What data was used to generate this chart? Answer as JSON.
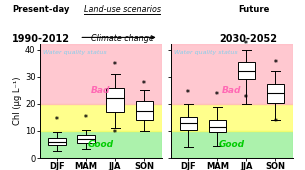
{
  "seasons": [
    "DJF",
    "MAM",
    "JJA",
    "SON"
  ],
  "panel1": {
    "DJF": {
      "whislo": 2.5,
      "q1": 5.0,
      "med": 6.0,
      "q3": 7.5,
      "whishi": 9.5,
      "fliers": [
        14.0
      ]
    },
    "MAM": {
      "whislo": 3.5,
      "q1": 5.5,
      "med": 7.0,
      "q3": 8.5,
      "whishi": 10.5,
      "fliers": [
        14.5
      ]
    },
    "JJA": {
      "whislo": 11.0,
      "q1": 17.0,
      "med": 22.0,
      "q3": 26.0,
      "whishi": 31.0,
      "fliers": [
        34.0,
        9.0
      ]
    },
    "SON": {
      "whislo": 10.0,
      "q1": 14.0,
      "med": 17.5,
      "q3": 21.0,
      "whishi": 25.0,
      "fliers": [
        27.0
      ]
    }
  },
  "panel2": {
    "DJF": {
      "whislo": 4.0,
      "q1": 10.5,
      "med": 13.0,
      "q3": 15.0,
      "whishi": 20.0,
      "fliers": [
        24.0
      ]
    },
    "MAM": {
      "whislo": 4.5,
      "q1": 9.5,
      "med": 11.5,
      "q3": 14.0,
      "whishi": 19.0,
      "fliers": [
        23.0
      ]
    },
    "JJA": {
      "whislo": 20.0,
      "q1": 29.0,
      "med": 32.0,
      "q3": 35.5,
      "whishi": 40.0,
      "fliers": [
        22.0,
        42.0
      ]
    },
    "SON": {
      "whislo": 14.0,
      "q1": 20.5,
      "med": 24.0,
      "q3": 27.5,
      "whishi": 32.0,
      "fliers": [
        35.0,
        13.0
      ]
    }
  },
  "ylim": [
    0,
    42
  ],
  "yticks": [
    0,
    10,
    20,
    30,
    40
  ],
  "ylabel": "Chl (μg L⁻¹)",
  "wq_text": "Water quality status",
  "good_text": "Good",
  "bad_text": "Bad",
  "color_good": "#90EE90",
  "color_moderate": "#FFFF66",
  "color_bad": "#FFB6C1",
  "color_wq_text": "#87CEEB",
  "color_good_text": "#00CC00",
  "color_bad_text": "#FF69B4"
}
